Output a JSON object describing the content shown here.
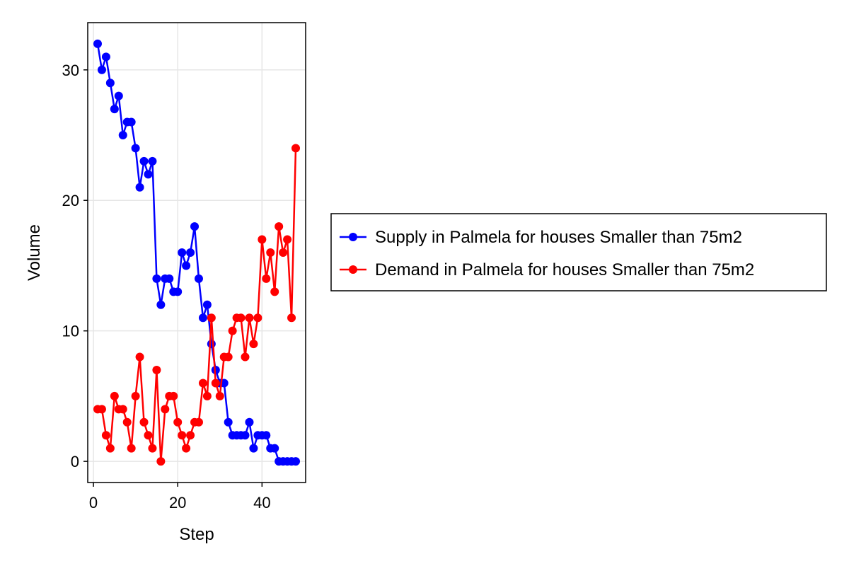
{
  "chart_data": {
    "type": "line",
    "title": "",
    "xlabel": "Step",
    "ylabel": "Volume",
    "xlim": [
      -1.35,
      50.35
    ],
    "ylim": [
      -1.62,
      33.62
    ],
    "xticks": [
      0,
      20,
      40
    ],
    "yticks": [
      0,
      10,
      20,
      30
    ],
    "grid": true,
    "legend_position": "right",
    "series": [
      {
        "name": "Supply in Palmela for houses Smaller than 75m2",
        "color": "#0000ff",
        "marker": "circle",
        "x": [
          1,
          2,
          3,
          4,
          5,
          6,
          7,
          8,
          9,
          10,
          11,
          12,
          13,
          14,
          15,
          16,
          17,
          18,
          19,
          20,
          21,
          22,
          23,
          24,
          25,
          26,
          27,
          28,
          29,
          30,
          31,
          32,
          33,
          34,
          35,
          36,
          37,
          38,
          39,
          40,
          41,
          42,
          43,
          44,
          45,
          46,
          47,
          48
        ],
        "y": [
          32,
          30,
          31,
          29,
          27,
          28,
          25,
          26,
          26,
          24,
          21,
          23,
          22,
          23,
          14,
          12,
          14,
          14,
          13,
          13,
          16,
          15,
          16,
          18,
          14,
          11,
          12,
          9,
          7,
          6,
          6,
          3,
          2,
          2,
          2,
          2,
          3,
          1,
          2,
          2,
          2,
          1,
          1,
          0,
          0,
          0,
          0,
          0
        ]
      },
      {
        "name": "Demand in Palmela for houses Smaller than 75m2",
        "color": "#ff0000",
        "marker": "circle",
        "x": [
          1,
          2,
          3,
          4,
          5,
          6,
          7,
          8,
          9,
          10,
          11,
          12,
          13,
          14,
          15,
          16,
          17,
          18,
          19,
          20,
          21,
          22,
          23,
          24,
          25,
          26,
          27,
          28,
          29,
          30,
          31,
          32,
          33,
          34,
          35,
          36,
          37,
          38,
          39,
          40,
          41,
          42,
          43,
          44,
          45,
          46,
          47,
          48
        ],
        "y": [
          4,
          4,
          2,
          1,
          5,
          4,
          4,
          3,
          1,
          5,
          8,
          3,
          2,
          1,
          7,
          0,
          4,
          5,
          5,
          3,
          2,
          1,
          2,
          3,
          3,
          6,
          5,
          11,
          6,
          5,
          8,
          8,
          10,
          11,
          11,
          8,
          11,
          9,
          11,
          17,
          14,
          16,
          13,
          18,
          16,
          17,
          11,
          24
        ]
      }
    ]
  }
}
